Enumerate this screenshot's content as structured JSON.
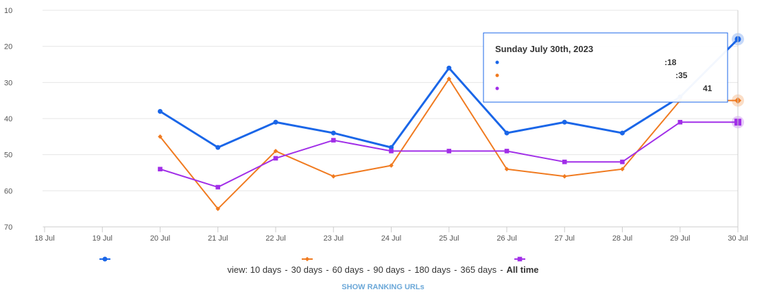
{
  "chart_data": {
    "type": "line",
    "categories": [
      "18 Jul",
      "19 Jul",
      "20 Jul",
      "21 Jul",
      "22 Jul",
      "23 Jul",
      "24 Jul",
      "25 Jul",
      "26 Jul",
      "27 Jul",
      "28 Jul",
      "29 Jul",
      "30 Jul"
    ],
    "ylim": [
      10,
      70
    ],
    "y_reversed": true,
    "y_ticks": [
      "10",
      "20",
      "30",
      "40",
      "50",
      "60",
      "70"
    ],
    "grid": true,
    "legend_position": "bottom",
    "series": [
      {
        "color": "#1a66e8",
        "marker": "circle",
        "values": [
          null,
          null,
          38,
          48,
          41,
          44,
          48,
          26,
          44,
          41,
          44,
          34,
          18
        ]
      },
      {
        "color": "#f07a1f",
        "marker": "diamond",
        "values": [
          null,
          null,
          45,
          65,
          49,
          56,
          53,
          29,
          54,
          56,
          54,
          35,
          35
        ]
      },
      {
        "color": "#a12ee8",
        "marker": "square",
        "values": [
          null,
          null,
          54,
          59,
          51,
          46,
          49,
          49,
          49,
          52,
          52,
          41,
          41
        ]
      }
    ],
    "tooltip": {
      "title": "Sunday July 30th, 2023",
      "values": [
        ":18",
        ":35",
        "41"
      ]
    }
  },
  "view_bar": {
    "prefix": "view:",
    "options": [
      "10 days",
      "30 days",
      "60 days",
      "90 days",
      "180 days",
      "365 days",
      "All time"
    ],
    "active": "All time"
  },
  "show_urls_label": "SHOW RANKING URLs"
}
